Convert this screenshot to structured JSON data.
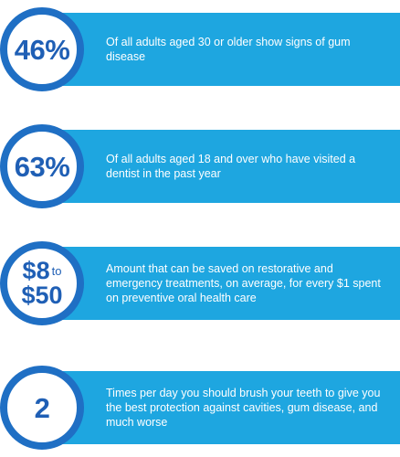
{
  "colors": {
    "bar": "#1ea6e0",
    "ring": "#1f6fc4",
    "number": "#1f5fb5"
  },
  "stats": [
    {
      "value": "46%",
      "description": "Of all adults aged 30 or older show signs of gum disease"
    },
    {
      "value": "63%",
      "description": "Of all adults aged 18 and over who have visited a dentist in the past year"
    },
    {
      "value_low": "$8",
      "value_to": "to",
      "value_high": "$50",
      "description": "Amount that can be saved on restorative and emergency treatments, on average, for every $1 spent on preventive oral health care"
    },
    {
      "value": "2",
      "description": "Times per day you should brush your teeth to give you the best protection against cavities, gum disease, and much worse"
    }
  ]
}
